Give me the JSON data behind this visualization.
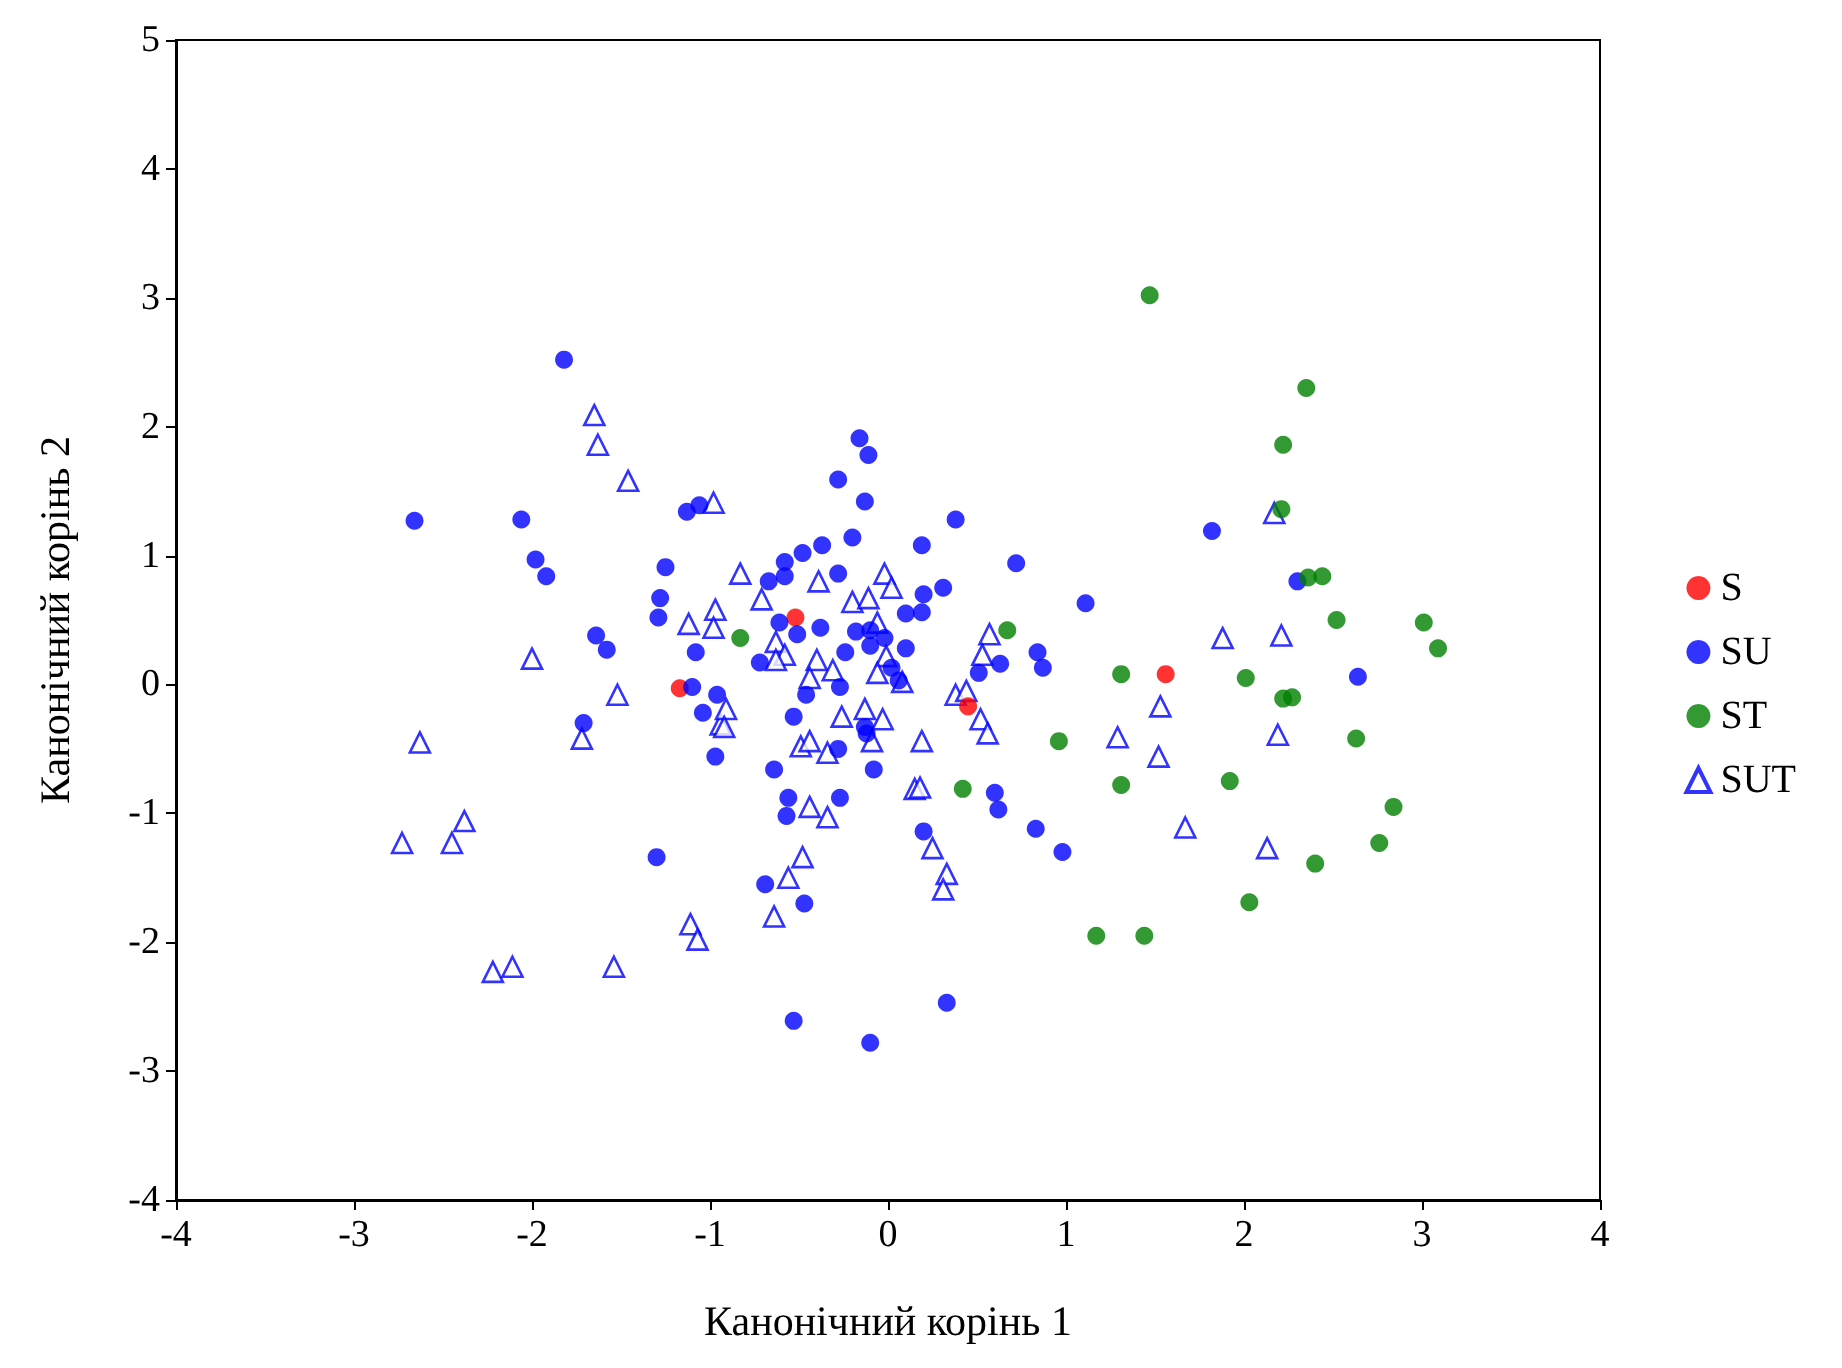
{
  "chart_data": {
    "type": "scatter",
    "xlabel": "Канонічний корінь 1",
    "ylabel": "Канонічний корінь 2",
    "xlim": [
      -4,
      4
    ],
    "xticks": [
      -4,
      -3,
      -2,
      -1,
      0,
      1,
      2,
      3,
      4
    ],
    "ylim": [
      -4,
      5
    ],
    "yticks": [
      -4,
      -3,
      -2,
      -1,
      0,
      1,
      2,
      3,
      4,
      5
    ],
    "grid": false,
    "legend": "right",
    "series": [
      {
        "name": "S",
        "color": "#ff0000",
        "marker": "circle",
        "x": [
          -0.52,
          0.45,
          -1.17,
          1.56
        ],
        "values": [
          0.52,
          -0.17,
          -0.03,
          0.08
        ]
      },
      {
        "name": "SU",
        "color": "#0000ff",
        "marker": "circle",
        "x": [
          -1.82,
          -2.66,
          -2.06,
          -1.98,
          -1.92,
          -1.25,
          -1.28,
          -1.29,
          -1.13,
          -1.06,
          -1.64,
          -1.58,
          -1.08,
          -1.1,
          -0.96,
          -1.04,
          -0.97,
          -1.71,
          -1.3,
          -0.16,
          -0.11,
          -0.28,
          -0.13,
          0.38,
          0.72,
          0.19,
          -0.2,
          -0.37,
          -0.48,
          -0.58,
          -0.58,
          -0.67,
          -0.28,
          0.2,
          0.31,
          0.1,
          0.19,
          -0.38,
          -0.51,
          -0.61,
          -0.72,
          -0.24,
          -0.18,
          -0.1,
          -0.1,
          -0.02,
          0.1,
          0.02,
          0.06,
          -0.27,
          -0.46,
          0.51,
          0.63,
          -0.53,
          -0.13,
          -0.12,
          -0.28,
          -0.64,
          -0.08,
          -0.56,
          -0.57,
          -0.27,
          0.2,
          0.6,
          0.62,
          -0.69,
          -0.47,
          0.33,
          -0.53,
          -0.1,
          1.11,
          1.82,
          2.3,
          2.64,
          0.84,
          0.87,
          0.83,
          0.98
        ],
        "values": [
          2.52,
          1.27,
          1.28,
          0.97,
          0.84,
          0.91,
          0.67,
          0.52,
          1.34,
          1.39,
          0.38,
          0.27,
          0.25,
          -0.02,
          -0.08,
          -0.22,
          -0.56,
          -0.3,
          -1.34,
          1.91,
          1.78,
          1.59,
          1.42,
          1.28,
          0.94,
          1.08,
          1.14,
          1.08,
          1.02,
          0.95,
          0.84,
          0.8,
          0.86,
          0.7,
          0.75,
          0.55,
          0.56,
          0.44,
          0.39,
          0.48,
          0.17,
          0.25,
          0.41,
          0.42,
          0.3,
          0.36,
          0.28,
          0.13,
          0.03,
          -0.02,
          -0.08,
          0.09,
          0.16,
          -0.25,
          -0.33,
          -0.38,
          -0.5,
          -0.66,
          -0.66,
          -0.88,
          -1.02,
          -0.88,
          -1.14,
          -0.84,
          -0.97,
          -1.55,
          -1.7,
          -2.47,
          -2.61,
          -2.78,
          0.63,
          1.19,
          0.8,
          0.06,
          0.25,
          0.13,
          -1.12,
          -1.3
        ]
      },
      {
        "name": "ST",
        "color": "#008000",
        "marker": "circle",
        "x": [
          1.47,
          2.35,
          2.22,
          2.21,
          2.36,
          2.44,
          2.52,
          3.01,
          3.09,
          2.63,
          2.84,
          2.76,
          2.4,
          2.03,
          1.92,
          2.01,
          2.22,
          2.27,
          1.31,
          1.31,
          0.96,
          0.42,
          0.67,
          -0.83,
          1.17,
          1.44
        ],
        "values": [
          3.02,
          2.3,
          1.86,
          1.36,
          0.83,
          0.84,
          0.5,
          0.48,
          0.28,
          -0.42,
          -0.95,
          -1.23,
          -1.39,
          -1.69,
          -0.75,
          0.05,
          -0.11,
          -0.1,
          0.08,
          -0.78,
          -0.44,
          -0.81,
          0.42,
          0.36,
          -1.95,
          -1.95
        ]
      },
      {
        "name": "SUT",
        "color": "#0000ff",
        "marker": "triangle",
        "x": [
          -1.65,
          -1.63,
          -1.46,
          -0.98,
          -2.0,
          -2.63,
          -1.52,
          -1.72,
          -1.12,
          -0.97,
          -0.98,
          -0.94,
          -2.38,
          -2.45,
          -2.73,
          -1.11,
          -1.07,
          -2.22,
          -2.11,
          -1.54,
          -0.83,
          -0.39,
          -0.02,
          0.02,
          -0.2,
          -0.11,
          -0.71,
          -0.06,
          -0.63,
          -0.58,
          -0.63,
          -0.4,
          -0.31,
          -0.44,
          -0.01,
          -0.06,
          0.08,
          0.57,
          0.53,
          0.38,
          0.44,
          0.52,
          0.56,
          -0.91,
          -0.92,
          -0.26,
          -0.13,
          -0.03,
          -0.09,
          -0.49,
          -0.44,
          -0.34,
          0.19,
          0.15,
          0.18,
          -0.44,
          -0.34,
          0.25,
          -0.48,
          -0.56,
          0.33,
          0.31,
          -0.64,
          2.17,
          1.88,
          2.21,
          1.53,
          1.29,
          1.52,
          2.19,
          1.67,
          2.13
        ],
        "values": [
          2.09,
          1.86,
          1.58,
          1.41,
          0.2,
          -0.45,
          -0.08,
          -0.42,
          0.47,
          0.58,
          0.44,
          -0.31,
          -1.06,
          -1.23,
          -1.23,
          -1.86,
          -1.98,
          -2.23,
          -2.19,
          -2.19,
          0.86,
          0.8,
          0.86,
          0.75,
          0.64,
          0.67,
          0.66,
          0.48,
          0.33,
          0.23,
          0.19,
          0.19,
          0.11,
          0.05,
          0.22,
          0.09,
          0.02,
          0.39,
          0.23,
          -0.08,
          -0.05,
          -0.27,
          -0.38,
          -0.19,
          -0.33,
          -0.25,
          -0.19,
          -0.27,
          -0.44,
          -0.48,
          -0.44,
          -0.53,
          -0.44,
          -0.81,
          -0.8,
          -0.95,
          -1.03,
          -1.27,
          -1.34,
          -1.5,
          -1.47,
          -1.59,
          -1.8,
          1.33,
          0.36,
          0.38,
          -0.17,
          -0.41,
          -0.56,
          -0.39,
          -1.11,
          -1.27
        ]
      }
    ]
  }
}
